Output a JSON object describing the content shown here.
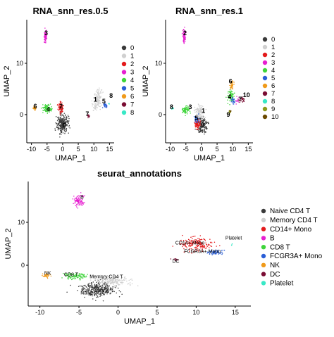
{
  "palette": {
    "0": "#3a3a3a",
    "1": "#d0d0d0",
    "2": "#e31a1c",
    "3": "#e61fd0",
    "4": "#3ed43a",
    "5": "#2a5ed6",
    "6": "#f09a1a",
    "7": "#7a0d33",
    "8": "#38e8c6",
    "9": "#8c9a1a",
    "10": "#6b4a00"
  },
  "chart_data": [
    {
      "type": "scatter",
      "title": "RNA_snn_res.0.5",
      "xlabel": "UMAP_1",
      "ylabel": "UMAP_2",
      "xlim": [
        -11.5,
        16.5
      ],
      "ylim": [
        -5.5,
        18.5
      ],
      "xticks": [
        -10,
        -5,
        0,
        5,
        10,
        15
      ],
      "yticks": [
        0,
        10
      ],
      "legend_title": "",
      "legend_position": "right",
      "series": [
        {
          "name": "0",
          "color": "#3a3a3a",
          "label": "0",
          "clusters": [
            {
              "cx": 0,
              "cy": -1.8,
              "sx": 1.7,
              "sy": 1.6,
              "n": 260
            }
          ]
        },
        {
          "name": "1",
          "color": "#d0d0d0",
          "label": "1",
          "clusters": [
            {
              "cx": 11.4,
              "cy": 3.2,
              "sx": 1.1,
              "sy": 1.5,
              "n": 110
            },
            {
              "cx": 10.2,
              "cy": 1.5,
              "sx": 0.8,
              "sy": 0.8,
              "n": 30
            }
          ]
        },
        {
          "name": "2",
          "color": "#e31a1c",
          "label": "2",
          "clusters": [
            {
              "cx": -0.6,
              "cy": 1.3,
              "sx": 0.8,
              "sy": 1.0,
              "n": 90
            }
          ]
        },
        {
          "name": "3",
          "color": "#e61fd0",
          "label": "3",
          "clusters": [
            {
              "cx": -5.5,
              "cy": 15.2,
              "sx": 0.35,
              "sy": 1.2,
              "n": 80
            }
          ]
        },
        {
          "name": "4",
          "color": "#3ed43a",
          "label": "4",
          "clusters": [
            {
              "cx": -5.0,
              "cy": 1.2,
              "sx": 1.3,
              "sy": 0.7,
              "n": 90
            }
          ]
        },
        {
          "name": "5",
          "color": "#2a5ed6",
          "label": "5",
          "clusters": [
            {
              "cx": 13.6,
              "cy": 1.8,
              "sx": 0.6,
              "sy": 0.4,
              "n": 35
            }
          ]
        },
        {
          "name": "6",
          "color": "#f09a1a",
          "label": "6",
          "clusters": [
            {
              "cx": -9.0,
              "cy": 1.2,
              "sx": 0.4,
              "sy": 0.5,
              "n": 25
            }
          ]
        },
        {
          "name": "7",
          "color": "#7a0d33",
          "label": "7",
          "clusters": [
            {
              "cx": 8.3,
              "cy": -0.2,
              "sx": 0.3,
              "sy": 0.3,
              "n": 12
            }
          ]
        },
        {
          "name": "8",
          "color": "#38e8c6",
          "label": "8",
          "clusters": [
            {
              "cx": 14.8,
              "cy": 2.1,
              "sx": 0.2,
              "sy": 0.2,
              "n": 4
            }
          ]
        }
      ],
      "labels": [
        {
          "text": "0",
          "x": 0.5,
          "y": -2.5
        },
        {
          "text": "1",
          "x": 10.5,
          "y": 2.5
        },
        {
          "text": "2",
          "x": -0.5,
          "y": 1.2
        },
        {
          "text": "3",
          "x": -5.3,
          "y": 15.5
        },
        {
          "text": "4",
          "x": -4.6,
          "y": 0.6
        },
        {
          "text": "5",
          "x": 13.2,
          "y": 2.2
        },
        {
          "text": "6",
          "x": -8.8,
          "y": 1.2
        },
        {
          "text": "7",
          "x": 7.9,
          "y": -0.3
        },
        {
          "text": "8",
          "x": 15.5,
          "y": 3.3
        }
      ]
    },
    {
      "type": "scatter",
      "title": "RNA_snn_res.1",
      "xlabel": "UMAP_1",
      "ylabel": "UMAP_2",
      "xlim": [
        -11.5,
        16.5
      ],
      "ylim": [
        -5.5,
        18.5
      ],
      "xticks": [
        -10,
        -5,
        0,
        5,
        10,
        15
      ],
      "yticks": [
        0,
        10
      ],
      "legend_title": "",
      "legend_position": "right",
      "series": [
        {
          "name": "0",
          "color": "#3a3a3a",
          "label": "0",
          "clusters": [
            {
              "cx": 0.3,
              "cy": -2.2,
              "sx": 1.5,
              "sy": 1.4,
              "n": 150
            }
          ]
        },
        {
          "name": "1",
          "color": "#d0d0d0",
          "label": "1",
          "clusters": [
            {
              "cx": -0.6,
              "cy": 0.6,
              "sx": 1.3,
              "sy": 1.0,
              "n": 110
            }
          ]
        },
        {
          "name": "2",
          "color": "#e31a1c",
          "label": "2",
          "clusters": [
            {
              "cx": -1.3,
              "cy": -1.9,
              "sx": 0.9,
              "sy": 0.9,
              "n": 90
            }
          ]
        },
        {
          "name": "3",
          "color": "#e61fd0",
          "label": "3",
          "clusters": [
            {
              "cx": -5.5,
              "cy": 15.2,
              "sx": 0.35,
              "sy": 1.2,
              "n": 80
            },
            {
              "cx": 11.8,
              "cy": 2.8,
              "sx": 0.7,
              "sy": 0.5,
              "n": 12
            }
          ]
        },
        {
          "name": "4",
          "color": "#3ed43a",
          "label": "4",
          "clusters": [
            {
              "cx": 9.3,
              "cy": 3.6,
              "sx": 0.9,
              "sy": 1.1,
              "n": 70
            },
            {
              "cx": -5.0,
              "cy": 1.0,
              "sx": 1.2,
              "sy": 0.6,
              "n": 70
            }
          ]
        },
        {
          "name": "5",
          "color": "#2a5ed6",
          "label": "5",
          "clusters": [
            {
              "cx": 10.2,
              "cy": 2.6,
              "sx": 0.6,
              "sy": 0.6,
              "n": 30
            },
            {
              "cx": -1.5,
              "cy": -1.0,
              "sx": 0.8,
              "sy": 0.6,
              "n": 30
            }
          ]
        },
        {
          "name": "6",
          "color": "#f09a1a",
          "label": "6",
          "clusters": [
            {
              "cx": 9.6,
              "cy": 5.8,
              "sx": 0.7,
              "sy": 0.8,
              "n": 45
            }
          ]
        },
        {
          "name": "7",
          "color": "#7a0d33",
          "label": "7",
          "clusters": [
            {
              "cx": 13.0,
              "cy": 2.8,
              "sx": 0.6,
              "sy": 0.5,
              "n": 25
            }
          ]
        },
        {
          "name": "8",
          "color": "#38e8c6",
          "label": "8",
          "clusters": [
            {
              "cx": -9.2,
              "cy": 1.3,
              "sx": 0.3,
              "sy": 0.3,
              "n": 10
            }
          ]
        },
        {
          "name": "9",
          "color": "#8c9a1a",
          "label": "9",
          "clusters": [
            {
              "cx": 8.9,
              "cy": 0.5,
              "sx": 0.4,
              "sy": 0.3,
              "n": 12
            }
          ]
        },
        {
          "name": "10",
          "color": "#6b4a00",
          "label": "10",
          "clusters": [
            {
              "cx": 9.3,
              "cy": 0.6,
              "sx": 0.2,
              "sy": 0.2,
              "n": 6
            }
          ]
        }
      ],
      "labels": [
        {
          "text": "0",
          "x": 0.4,
          "y": -2.4
        },
        {
          "text": "1",
          "x": 0.6,
          "y": 0.3
        },
        {
          "text": "2",
          "x": -5.3,
          "y": 15.5
        },
        {
          "text": "3",
          "x": -3.6,
          "y": 1.1
        },
        {
          "text": "4",
          "x": 9.0,
          "y": 3.1
        },
        {
          "text": "5",
          "x": -1.6,
          "y": -1.1
        },
        {
          "text": "6",
          "x": 9.3,
          "y": 6.1
        },
        {
          "text": "7",
          "x": 12.4,
          "y": 2.6
        },
        {
          "text": "8",
          "x": -9.6,
          "y": 1.1
        },
        {
          "text": "9",
          "x": 8.6,
          "y": -0.4
        },
        {
          "text": "10",
          "x": 14.4,
          "y": 3.4
        }
      ]
    },
    {
      "type": "scatter",
      "title": "seurat_annotations",
      "xlabel": "UMAP_1",
      "ylabel": "UMAP_2",
      "xlim": [
        -11.5,
        17
      ],
      "ylim": [
        -9.5,
        19.5
      ],
      "xticks": [
        -10,
        -5,
        0,
        5,
        10,
        15
      ],
      "yticks": [
        0,
        10
      ],
      "legend_title": "",
      "legend_position": "right",
      "series": [
        {
          "name": "Naive CD4 T",
          "color": "#3a3a3a",
          "label": "Naive CD4 T",
          "clusters": [
            {
              "cx": -2.5,
              "cy": -5.5,
              "sx": 2.0,
              "sy": 1.6,
              "n": 330
            }
          ]
        },
        {
          "name": "Memory CD4 T",
          "color": "#d0d0d0",
          "label": "Memory CD4 T",
          "clusters": [
            {
              "cx": -0.6,
              "cy": -3.6,
              "sx": 2.0,
              "sy": 1.2,
              "n": 190
            }
          ]
        },
        {
          "name": "CD14+ Mono",
          "color": "#e31a1c",
          "label": "CD14+ Mono",
          "clusters": [
            {
              "cx": 10.0,
              "cy": 5.0,
              "sx": 1.9,
              "sy": 1.4,
              "n": 190
            }
          ]
        },
        {
          "name": "B",
          "color": "#e61fd0",
          "label": "B",
          "clusters": [
            {
              "cx": -5.0,
              "cy": 15.0,
              "sx": 0.6,
              "sy": 1.3,
              "n": 100
            }
          ]
        },
        {
          "name": "CD8 T",
          "color": "#3ed43a",
          "label": "CD8 T",
          "clusters": [
            {
              "cx": -5.5,
              "cy": -2.6,
              "sx": 1.5,
              "sy": 0.6,
              "n": 110
            }
          ]
        },
        {
          "name": "FCGR3A+ Mono",
          "color": "#2a5ed6",
          "label": "FCGR3A+ Mono",
          "clusters": [
            {
              "cx": 12.5,
              "cy": 3.0,
              "sx": 1.0,
              "sy": 0.5,
              "n": 70
            }
          ]
        },
        {
          "name": "NK",
          "color": "#f09a1a",
          "label": "NK",
          "clusters": [
            {
              "cx": -9.2,
              "cy": -2.4,
              "sx": 0.5,
              "sy": 0.5,
              "n": 40
            }
          ]
        },
        {
          "name": "DC",
          "color": "#7a0d33",
          "label": "DC",
          "clusters": [
            {
              "cx": 7.4,
              "cy": 1.3,
              "sx": 0.4,
              "sy": 0.3,
              "n": 14
            }
          ]
        },
        {
          "name": "Platelet",
          "color": "#38e8c6",
          "label": "Platelet",
          "clusters": [
            {
              "cx": 14.6,
              "cy": 4.8,
              "sx": 0.2,
              "sy": 0.2,
              "n": 3
            }
          ]
        }
      ],
      "labels": [
        {
          "text": "Naive CD4 T",
          "x": -3.0,
          "y": -6.8
        },
        {
          "text": "Memory CD4 T",
          "x": -1.5,
          "y": -3.0
        },
        {
          "text": "CD14+ Mono",
          "x": 9.2,
          "y": 4.8
        },
        {
          "text": "B",
          "x": -4.6,
          "y": 15.5
        },
        {
          "text": "CD8 T",
          "x": -6.0,
          "y": -2.5
        },
        {
          "text": "FCGR3A+ Mono",
          "x": 10.8,
          "y": 2.9
        },
        {
          "text": "NK",
          "x": -9.0,
          "y": -2.2
        },
        {
          "text": "DC",
          "x": 7.4,
          "y": 0.6
        },
        {
          "text": "Platelet",
          "x": 14.8,
          "y": 6.0
        }
      ]
    }
  ]
}
